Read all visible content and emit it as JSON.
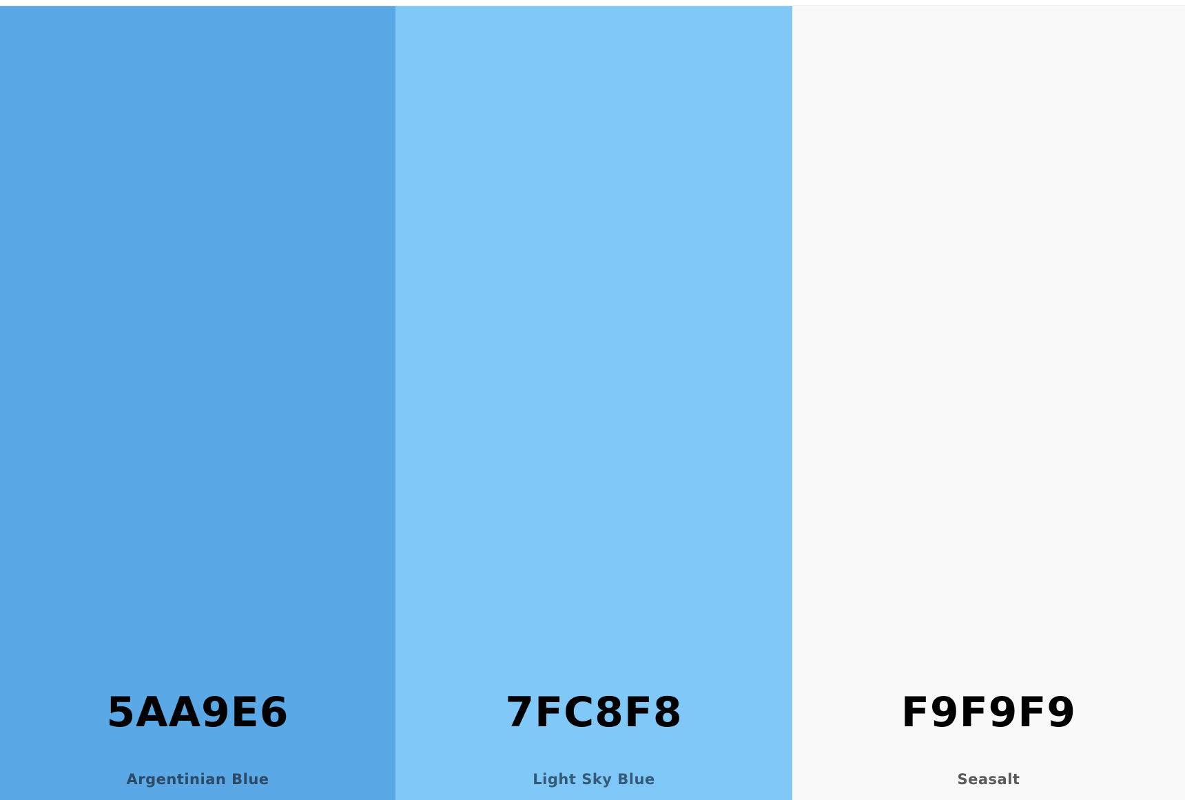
{
  "swatches": [
    {
      "hex": "5AA9E6",
      "name": "Argentinian Blue",
      "color": "#5AA9E6",
      "name_color": "#2c4a66"
    },
    {
      "hex": "7FC8F8",
      "name": "Light Sky Blue",
      "color": "#7FC8F8",
      "name_color": "#345a78"
    },
    {
      "hex": "F9F9F9",
      "name": "Seasalt",
      "color": "#F9F9F9",
      "name_color": "#5a5a5a"
    }
  ]
}
